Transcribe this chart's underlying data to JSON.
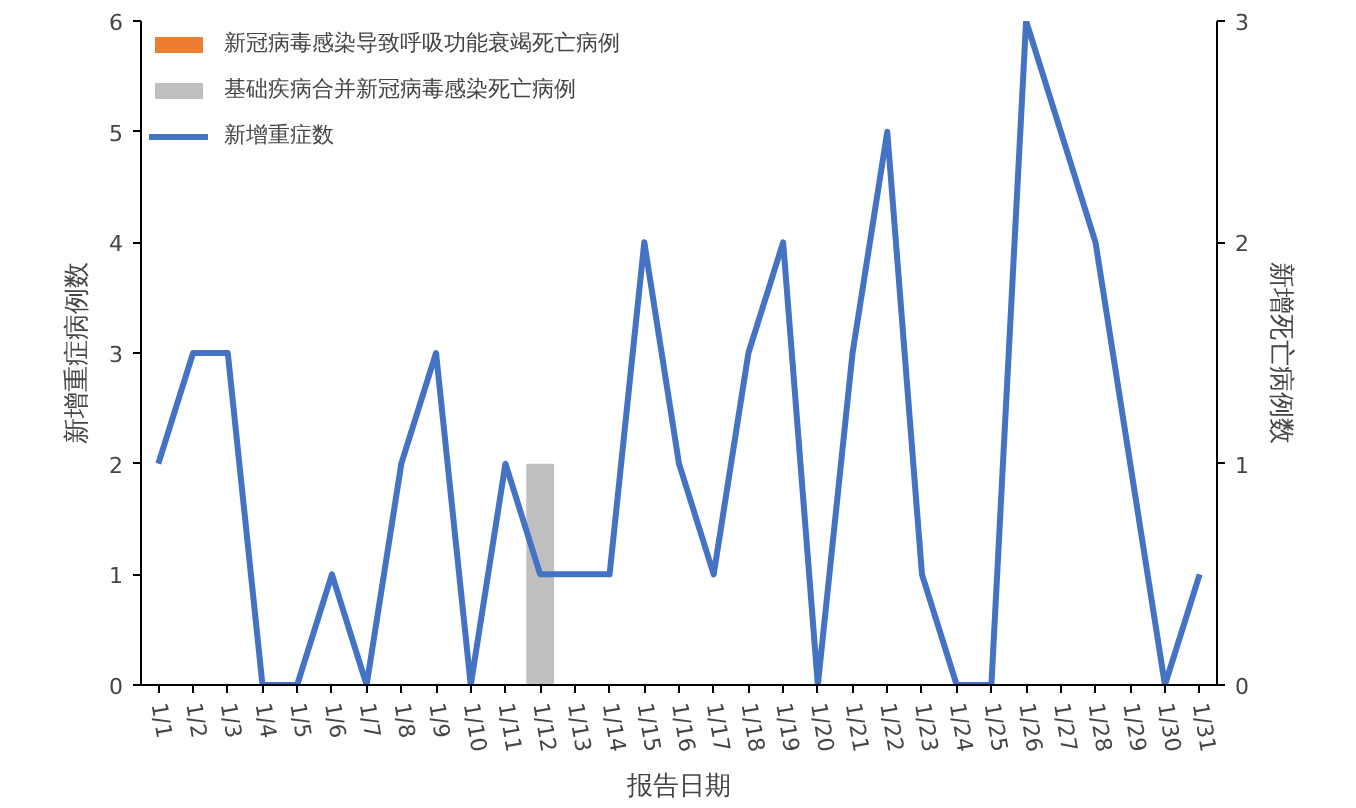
{
  "chart_data": {
    "type": "bar",
    "xlabel": "报告日期",
    "ylabel": "新增重症病例数",
    "y2label": "新增死亡病例数",
    "categories": [
      "1/1",
      "1/2",
      "1/3",
      "1/4",
      "1/5",
      "1/6",
      "1/7",
      "1/8",
      "1/9",
      "1/10",
      "1/11",
      "1/12",
      "1/13",
      "1/14",
      "1/15",
      "1/16",
      "1/17",
      "1/18",
      "1/19",
      "1/20",
      "1/21",
      "1/22",
      "1/23",
      "1/24",
      "1/25",
      "1/26",
      "1/27",
      "1/28",
      "1/29",
      "1/30",
      "1/31"
    ],
    "series": [
      {
        "name": "新冠病毒感染导致呼吸功能衰竭死亡病例",
        "color": "#ed7d31",
        "axis": "y2",
        "values": [
          0,
          0,
          0,
          0,
          0,
          0,
          0,
          0,
          0,
          0,
          0,
          0,
          0,
          0,
          0,
          0,
          0,
          0,
          0,
          0,
          0,
          0,
          0,
          0,
          0,
          0,
          0,
          0,
          0,
          0,
          0
        ]
      },
      {
        "name": "基础疾病合并新冠病毒感染死亡病例",
        "color": "#bfbfbf",
        "axis": "y2",
        "values": [
          0,
          0,
          0,
          0,
          0,
          0,
          0,
          0,
          0,
          0,
          0,
          1,
          0,
          0,
          0,
          0,
          0,
          0,
          0,
          0,
          0,
          0,
          0,
          0,
          0,
          0,
          0,
          0,
          0,
          0,
          0
        ]
      },
      {
        "name": "新增重症数",
        "color": "#4472c4",
        "type": "line",
        "values": [
          2,
          3,
          3,
          0,
          0,
          1,
          0,
          2,
          3,
          0,
          2,
          1,
          1,
          1,
          4,
          2,
          1,
          3,
          4,
          0,
          3,
          5,
          1,
          0,
          0,
          6,
          5,
          4,
          2,
          0,
          1
        ]
      }
    ],
    "stacked": true,
    "ylim": [
      0,
      6
    ],
    "yticks": [
      0,
      1,
      2,
      3,
      4,
      5,
      6
    ],
    "y2lim": [
      0,
      3
    ],
    "y2ticks": [
      0,
      1,
      2,
      3
    ],
    "legend": "top left",
    "grid": false,
    "marker": "none",
    "line_style": "solid"
  }
}
